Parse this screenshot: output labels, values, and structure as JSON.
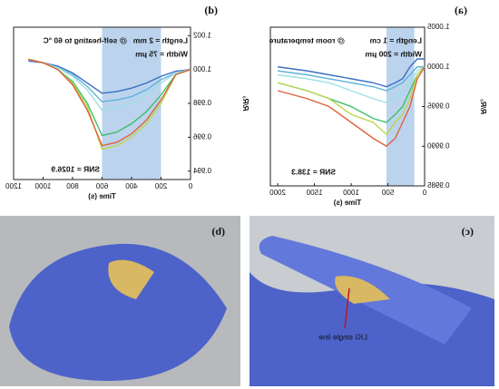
{
  "chart_data": [
    {
      "type": "line",
      "title": "(a)",
      "x_label": "Time (s)",
      "y_label": "R/R₀",
      "annotations": [
        "Length = 1 cm",
        "Width = 200 μm",
        "@ room temperature",
        "SNR = 138.3"
      ],
      "highlight": [
        140,
        520
      ],
      "x": [
        0,
        100,
        200,
        300,
        400,
        520,
        700,
        1000,
        1300,
        1600,
        2000
      ],
      "series": [
        {
          "color": "#3a6fc4",
          "values": [
            1.0001,
            1.0001,
            1.0,
            0.99985,
            0.9998,
            0.99975,
            0.9998,
            0.99985,
            0.9999,
            0.99995,
            1.0
          ]
        },
        {
          "color": "#5fb3d9",
          "values": [
            1.0,
            1.0,
            0.9999,
            0.9998,
            0.99975,
            0.9997,
            0.99975,
            0.9998,
            0.99985,
            0.9999,
            0.99995
          ]
        },
        {
          "color": "#9ee0e6",
          "values": [
            1.0,
            0.99995,
            0.9998,
            0.9997,
            0.9996,
            0.99955,
            0.9996,
            0.9997,
            0.9998,
            0.99985,
            0.9999
          ]
        },
        {
          "color": "#3cc06a",
          "values": [
            1.0,
            0.9999,
            0.9997,
            0.9995,
            0.9994,
            0.9993,
            0.99935,
            0.9995,
            0.9996,
            0.9997,
            0.9998
          ]
        },
        {
          "color": "#b8d84a",
          "values": [
            1.0,
            0.9999,
            0.9996,
            0.9994,
            0.9993,
            0.99915,
            0.9993,
            0.9994,
            0.9996,
            0.9997,
            0.9998
          ]
        },
        {
          "color": "#e0603a",
          "values": [
            1.0,
            0.99985,
            0.9995,
            0.9993,
            0.9991,
            0.999,
            0.9991,
            0.9993,
            0.9995,
            0.9996,
            0.9997
          ]
        }
      ],
      "xlim": [
        0,
        2100
      ],
      "xticks": [
        0,
        500,
        1000,
        1500,
        2000
      ],
      "ylim": [
        0.9985,
        1.0005
      ],
      "yticks": [
        0.9985,
        {
          "value": 0.999,
          "label": "0.9990"
        },
        0.9995,
        {
          "value": 1,
          "label": "1.0000"
        },
        1.0005
      ]
    },
    {
      "type": "line",
      "title": "(d)",
      "x_label": "Time (s)",
      "y_label": "R/R₀",
      "annotations": [
        "Length = 2 mm",
        "Width = 75 μm",
        "@ self-heating to 60 °C",
        "SNR = 1026.9"
      ],
      "highlight": [
        200,
        600
      ],
      "x": [
        0,
        100,
        200,
        300,
        400,
        500,
        600,
        700,
        800,
        900,
        1000,
        1100
      ],
      "series": [
        {
          "color": "#3a6fc4",
          "values": [
            1.0,
            0.9999,
            0.9996,
            0.9992,
            0.9989,
            0.9987,
            0.9986,
            0.9992,
            0.9998,
            1.0002,
            1.0004,
            1.0005
          ]
        },
        {
          "color": "#5fb3d9",
          "values": [
            1.0,
            0.9998,
            0.9994,
            0.9988,
            0.9984,
            0.9982,
            0.9981,
            0.999,
            0.9997,
            1.0001,
            1.0004,
            1.0006
          ]
        },
        {
          "color": "#9ee0e6",
          "values": [
            1.0,
            0.9998,
            0.9992,
            0.9985,
            0.998,
            0.9977,
            0.9976,
            0.9988,
            0.9996,
            1.0001,
            1.0004,
            1.0006
          ]
        },
        {
          "color": "#3cc06a",
          "values": [
            1.0,
            0.9997,
            0.9985,
            0.9975,
            0.9968,
            0.9963,
            0.9961,
            0.998,
            0.9993,
            1.0,
            1.0004,
            1.0006
          ]
        },
        {
          "color": "#b8d84a",
          "values": [
            1.0,
            0.9997,
            0.998,
            0.9968,
            0.996,
            0.9955,
            0.9953,
            0.9978,
            0.9992,
            1.0,
            1.0004,
            1.0006
          ]
        },
        {
          "color": "#e0603a",
          "values": [
            1.0,
            0.9997,
            0.9982,
            0.997,
            0.9962,
            0.9957,
            0.9955,
            0.9976,
            0.9991,
            1.0,
            1.0004,
            1.0006
          ]
        }
      ],
      "xlim": [
        0,
        1200
      ],
      "xticks": [
        0,
        200,
        400,
        600,
        800,
        1000,
        1200
      ],
      "ylim": [
        0.9935,
        1.0025
      ],
      "yticks": [
        0.994,
        0.996,
        0.998,
        {
          "value": 1,
          "label": "1.000"
        },
        1.002
      ]
    }
  ],
  "photos": [
    {
      "label": "(c)",
      "annotation": "LIG single line"
    },
    {
      "label": "(b)"
    }
  ]
}
